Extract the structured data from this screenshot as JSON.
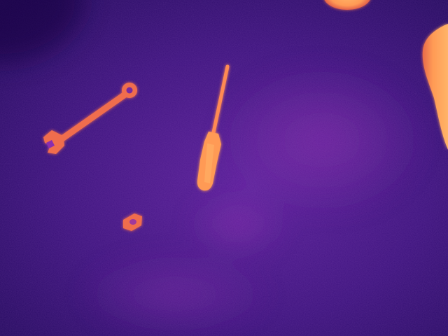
{
  "image": {
    "kind": "thermal-camera-frame",
    "palette": "ironbow",
    "colors": {
      "background_dark": "#22095c",
      "background_mid": "#3d137e",
      "background_light": "#5a1f9a",
      "cool_haze": "#8a2fae",
      "warm_object": "#f0704a",
      "hot_object": "#ff9a55",
      "hottest_core": "#ffb468"
    },
    "objects": [
      {
        "name": "wrench",
        "heat_level": "warm"
      },
      {
        "name": "screwdriver",
        "heat_level": "hot"
      },
      {
        "name": "hex-nut",
        "heat_level": "warm"
      },
      {
        "name": "top-edge-heat-blob",
        "heat_level": "hot"
      },
      {
        "name": "right-edge-heat-blob",
        "heat_level": "hot"
      }
    ]
  }
}
